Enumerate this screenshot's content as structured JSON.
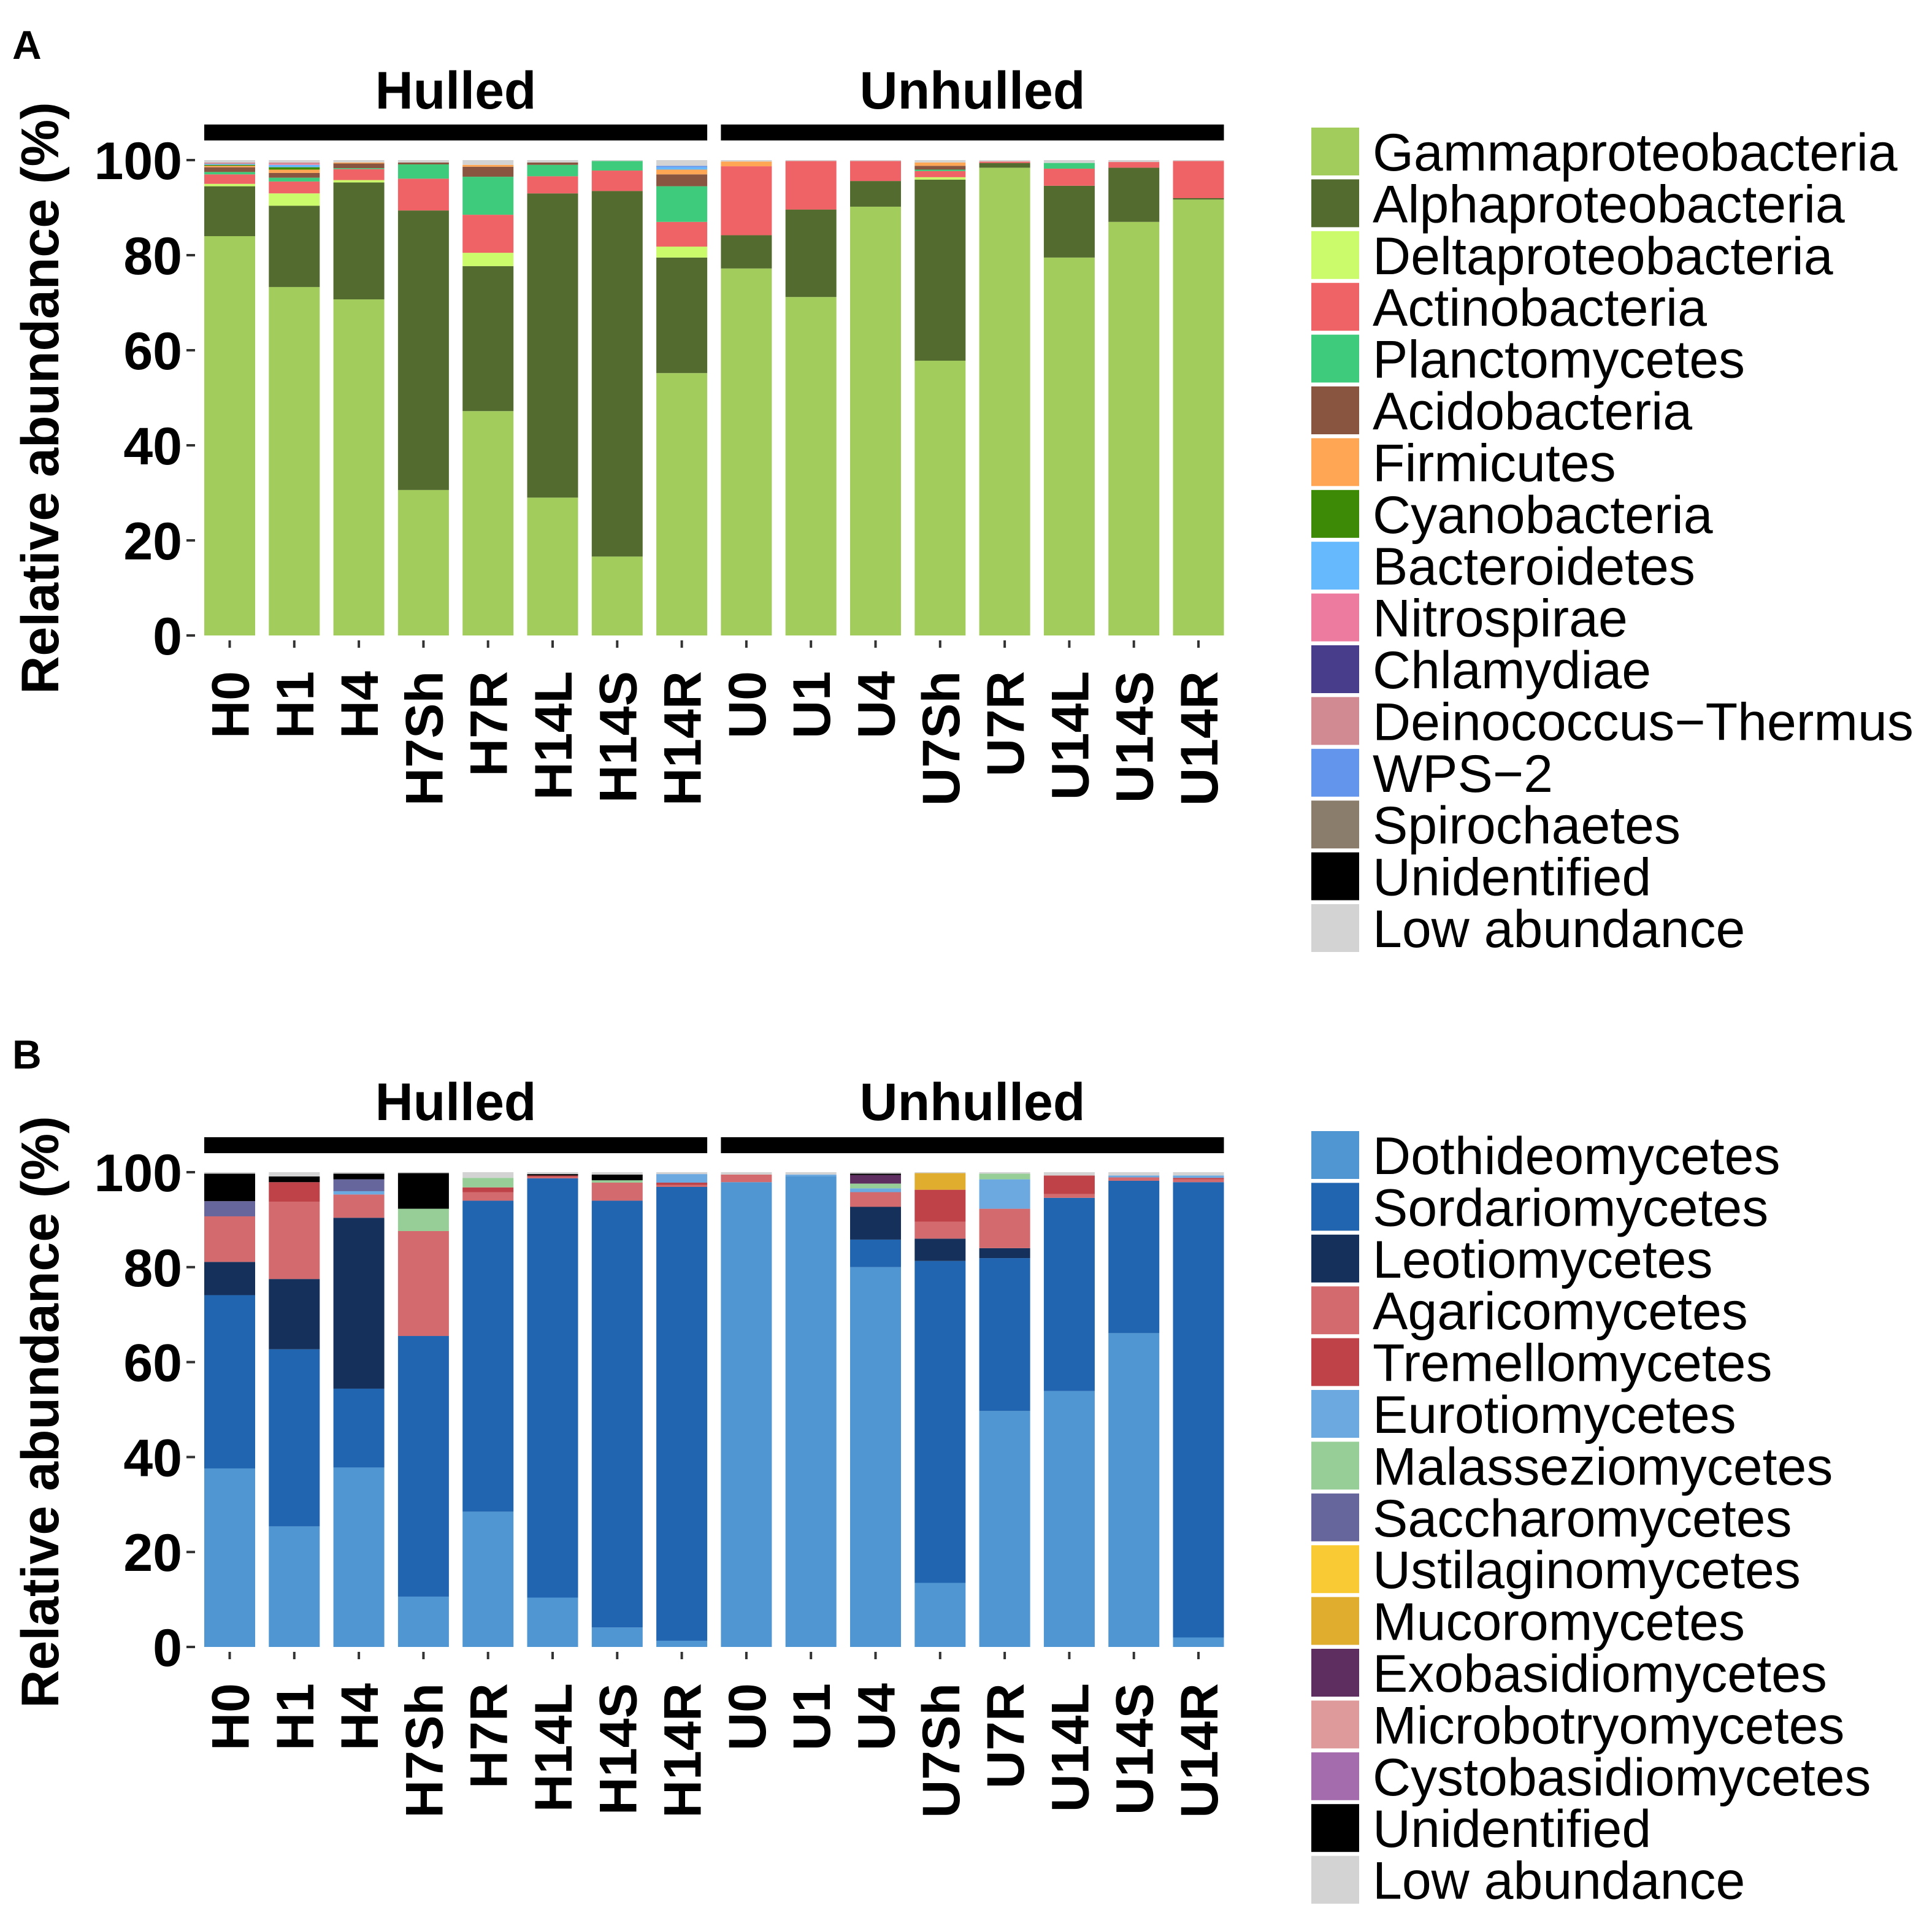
{
  "chart_data": [
    {
      "panel": "A",
      "type": "bar",
      "stacked": true,
      "categories": [
        "H0",
        "H1",
        "H4",
        "H7Sh",
        "H7R",
        "H14L",
        "H14S",
        "H14R",
        "U0",
        "U1",
        "U4",
        "U7Sh",
        "U7R",
        "U14L",
        "U14S",
        "U14R"
      ],
      "groups": [
        {
          "label": "Hulled",
          "first": 0,
          "last": 7
        },
        {
          "label": "Unhulled",
          "first": 8,
          "last": 15
        }
      ],
      "ylabel": "Relative abundance (%)",
      "ylim": [
        0,
        100
      ],
      "yticks": [
        0,
        20,
        40,
        60,
        80,
        100
      ],
      "series": [
        {
          "name": "Gammaproteobacteria",
          "color": "#A2CC5C",
          "values": [
            84,
            73.3,
            70.7,
            30.6,
            47.2,
            29,
            16.6,
            55.2,
            77.2,
            71.2,
            90.2,
            57.8,
            98.4,
            79.5,
            87,
            91.7
          ]
        },
        {
          "name": "Alphaproteobacteria",
          "color": "#546B2F",
          "values": [
            10.5,
            17.1,
            24.6,
            58.8,
            30.5,
            64,
            76.9,
            24.3,
            7,
            18.4,
            5.4,
            38.1,
            1.0,
            15.1,
            11.4,
            0.3
          ]
        },
        {
          "name": "Deltaproteobacteria",
          "color": "#CBFA6B",
          "values": [
            0.5,
            2.6,
            0.5,
            0,
            2.8,
            0,
            0,
            2.3,
            0,
            0,
            0,
            0.5,
            0,
            0,
            0,
            0
          ]
        },
        {
          "name": "Actinobacteria",
          "color": "#EF6366",
          "values": [
            2,
            2.5,
            2.3,
            6.7,
            8,
            3.6,
            4.3,
            5.2,
            14.5,
            10.2,
            4.2,
            1.3,
            0.3,
            3.6,
            1.2,
            7.8
          ]
        },
        {
          "name": "Planctomycetes",
          "color": "#3ECB7B",
          "values": [
            0.5,
            0.8,
            0.2,
            3,
            8,
            2.4,
            2.0,
            7.5,
            0,
            0,
            0,
            0.3,
            0,
            1.2,
            0,
            0
          ]
        },
        {
          "name": "Acidobacteria",
          "color": "#8A5540",
          "values": [
            1,
            1.0,
            1.0,
            0.4,
            2.1,
            0.5,
            0,
            2.5,
            0,
            0,
            0,
            0.8,
            0,
            0,
            0,
            0
          ]
        },
        {
          "name": "Firmicutes",
          "color": "#FFA654",
          "values": [
            0.3,
            0.7,
            0.2,
            0,
            0.4,
            0,
            0,
            1,
            1,
            0,
            0,
            0.7,
            0,
            0,
            0,
            0
          ]
        },
        {
          "name": "Cyanobacteria",
          "color": "#3C8A05",
          "values": [
            0.2,
            0.5,
            0,
            0,
            0,
            0,
            0,
            0,
            0,
            0,
            0,
            0,
            0,
            0,
            0,
            0
          ]
        },
        {
          "name": "Bacteroidetes",
          "color": "#66B9FC",
          "values": [
            0.2,
            0.5,
            0,
            0,
            0,
            0,
            0,
            0.5,
            0,
            0,
            0,
            0,
            0,
            0,
            0,
            0
          ]
        },
        {
          "name": "Nitrospirae",
          "color": "#ED7BA0",
          "values": [
            0,
            0.2,
            0,
            0,
            0,
            0,
            0,
            0,
            0,
            0,
            0,
            0,
            0,
            0,
            0,
            0
          ]
        },
        {
          "name": "Chlamydiae",
          "color": "#483D8B",
          "values": [
            0,
            0,
            0,
            0,
            0,
            0,
            0,
            0,
            0,
            0,
            0,
            0,
            0,
            0,
            0,
            0
          ]
        },
        {
          "name": "Deinococcus−Thermus",
          "color": "#D28A92",
          "values": [
            0.3,
            0.3,
            0,
            0,
            0,
            0,
            0,
            0,
            0,
            0,
            0,
            0,
            0,
            0,
            0,
            0
          ]
        },
        {
          "name": "WPS−2",
          "color": "#6495ED",
          "values": [
            0,
            0,
            0,
            0,
            0,
            0,
            0,
            0.3,
            0,
            0,
            0,
            0,
            0,
            0,
            0,
            0
          ]
        },
        {
          "name": "Spirochaetes",
          "color": "#8B7D6B",
          "values": [
            0,
            0,
            0,
            0,
            0,
            0,
            0,
            0,
            0,
            0,
            0,
            0,
            0,
            0,
            0,
            0
          ]
        },
        {
          "name": "Unidentified",
          "color": "#000000",
          "values": [
            0,
            0,
            0,
            0,
            0,
            0,
            0,
            0,
            0,
            0,
            0,
            0,
            0,
            0,
            0,
            0
          ]
        },
        {
          "name": "Low abundance",
          "color": "#D3D3D3",
          "values": [
            0.5,
            0.5,
            0.5,
            0.5,
            1.0,
            0.5,
            0.2,
            1.2,
            0.3,
            0.2,
            0.2,
            0.5,
            0.3,
            0.6,
            0.4,
            0.2
          ]
        }
      ]
    },
    {
      "panel": "B",
      "type": "bar",
      "stacked": true,
      "categories": [
        "H0",
        "H1",
        "H4",
        "H7Sh",
        "H7R",
        "H14L",
        "H14S",
        "H14R",
        "U0",
        "U1",
        "U4",
        "U7Sh",
        "U7R",
        "U14L",
        "U14S",
        "U14R"
      ],
      "groups": [
        {
          "label": "Hulled",
          "first": 0,
          "last": 7
        },
        {
          "label": "Unhulled",
          "first": 8,
          "last": 15
        }
      ],
      "ylabel": "Relative abundance (%)",
      "ylim": [
        0,
        100
      ],
      "yticks": [
        0,
        20,
        40,
        60,
        80,
        100
      ],
      "series": [
        {
          "name": "Dothideomycetes",
          "color": "#5096D3",
          "values": [
            37.6,
            25.4,
            37.8,
            10.6,
            28.5,
            10.4,
            4.1,
            1.3,
            97.9,
            99.2,
            80,
            13.5,
            49.7,
            53.9,
            66.1,
            2
          ]
        },
        {
          "name": "Sordariomycetes",
          "color": "#2165B1",
          "values": [
            36.5,
            37.3,
            16.6,
            54.9,
            65.5,
            88.3,
            89.9,
            95.6,
            0,
            0,
            5.8,
            67.8,
            32.2,
            40.7,
            32.1,
            95.9
          ]
        },
        {
          "name": "Leotiomycetes",
          "color": "#14305B",
          "values": [
            7,
            14.8,
            36,
            0,
            0,
            0,
            0,
            0,
            0,
            0,
            6.9,
            4.7,
            2.1,
            0,
            0,
            0
          ]
        },
        {
          "name": "Agaricomycetes",
          "color": "#D36A6E",
          "values": [
            9.6,
            16.3,
            4.9,
            22.1,
            1.8,
            0.3,
            3.8,
            0.4,
            1.6,
            0,
            3.1,
            3.6,
            8.3,
            0.8,
            0.7,
            0.6
          ]
        },
        {
          "name": "Tremellomycetes",
          "color": "#BE4248",
          "values": [
            0,
            4.1,
            0,
            0,
            1,
            0.3,
            0,
            0.5,
            0,
            0,
            0,
            6.7,
            0,
            3.9,
            0,
            0.3
          ]
        },
        {
          "name": "Eurotiomycetes",
          "color": "#6CA9E1",
          "values": [
            0,
            0,
            0.7,
            0,
            0,
            0,
            0,
            1.8,
            0,
            0.3,
            0.8,
            0,
            6.2,
            0,
            0.4,
            0.5
          ]
        },
        {
          "name": "Malasseziomycetes",
          "color": "#97CE97",
          "values": [
            0,
            0,
            0,
            4.7,
            2,
            0,
            0.5,
            0,
            0,
            0,
            1,
            0,
            1.2,
            0,
            0,
            0
          ]
        },
        {
          "name": "Saccharomycetes",
          "color": "#67669C",
          "values": [
            3.2,
            0,
            2.5,
            0,
            0,
            0,
            0,
            0,
            0,
            0,
            0,
            0,
            0,
            0,
            0,
            0
          ]
        },
        {
          "name": "Ustilaginomycetes",
          "color": "#FACA35",
          "values": [
            0,
            0,
            0,
            0,
            0,
            0,
            0,
            0,
            0,
            0,
            0,
            0,
            0,
            0,
            0,
            0
          ]
        },
        {
          "name": "Mucoromycetes",
          "color": "#E1AD2E",
          "values": [
            0,
            0,
            0,
            0,
            0,
            0,
            0,
            0,
            0,
            0,
            0,
            3.5,
            0,
            0,
            0,
            0
          ]
        },
        {
          "name": "Exobasidiomycetes",
          "color": "#5E2E61",
          "values": [
            0,
            0,
            0,
            0,
            0,
            0,
            0,
            0,
            0,
            0,
            1.8,
            0,
            0,
            0,
            0,
            0
          ]
        },
        {
          "name": "Microbotryomycetes",
          "color": "#DE9A9B",
          "values": [
            0,
            0,
            0,
            0,
            0,
            0,
            0,
            0,
            0,
            0,
            0,
            0,
            0,
            0,
            0,
            0
          ]
        },
        {
          "name": "Cystobasidiomycetes",
          "color": "#A46CAD",
          "values": [
            0,
            0,
            0,
            0,
            0,
            0,
            0,
            0,
            0,
            0,
            0,
            0,
            0,
            0,
            0,
            0
          ]
        },
        {
          "name": "Unidentified",
          "color": "#000000",
          "values": [
            5.8,
            1.2,
            1.2,
            7.5,
            0,
            0.3,
            1.2,
            0,
            0,
            0,
            0.3,
            0,
            0,
            0,
            0,
            0
          ]
        },
        {
          "name": "Low abundance",
          "color": "#D3D3D3",
          "values": [
            0.3,
            0.9,
            0.3,
            0.2,
            1.2,
            0.4,
            0.5,
            0.4,
            0.5,
            0.5,
            0.3,
            0.2,
            0.3,
            0.7,
            0.7,
            0.7
          ]
        }
      ]
    }
  ]
}
